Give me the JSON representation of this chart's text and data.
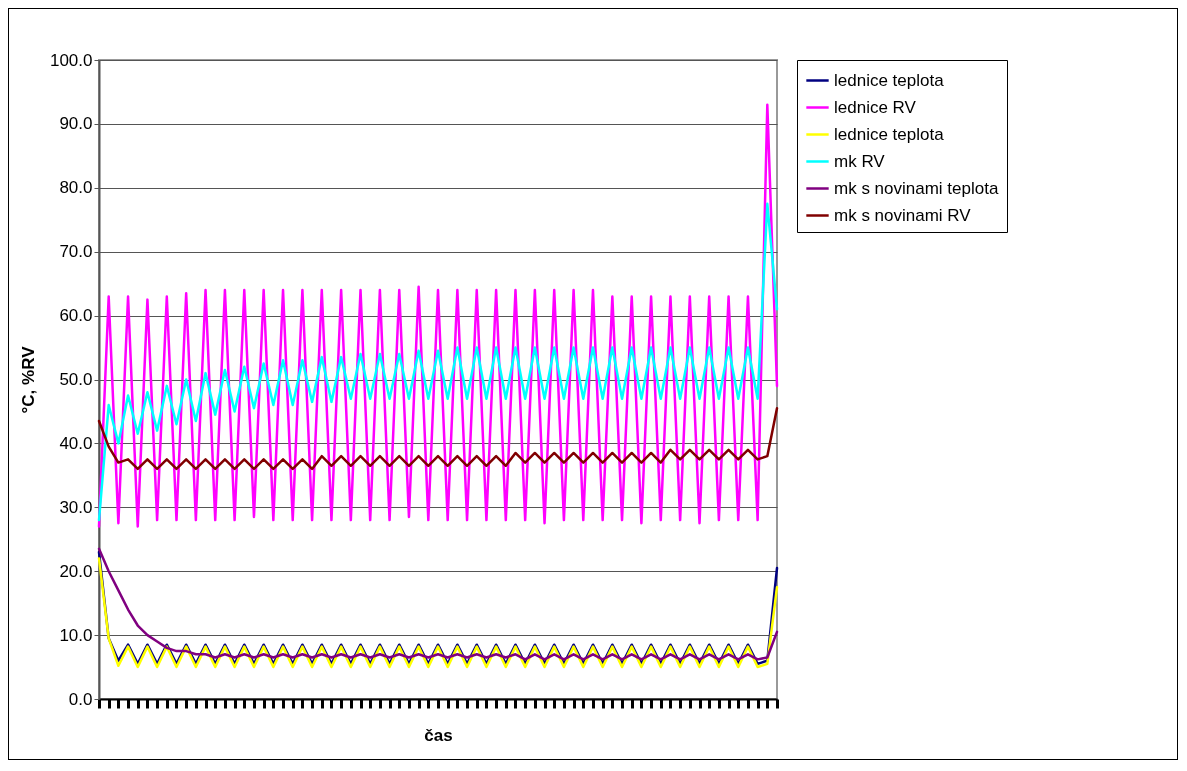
{
  "chart_data": {
    "type": "line",
    "xlabel": "čas",
    "ylabel": "°C, %RV",
    "categories": [
      null,
      null,
      null,
      null,
      null,
      null,
      null,
      null,
      null,
      null,
      null,
      null,
      null,
      null,
      null,
      null,
      null,
      null,
      null,
      null,
      null,
      null,
      null,
      null,
      null,
      null,
      null,
      null,
      null,
      null,
      null,
      null,
      null,
      null,
      null,
      null,
      null,
      null,
      null,
      null,
      null,
      null,
      null,
      null,
      null,
      null,
      null,
      null,
      null,
      null,
      null,
      null,
      null,
      null,
      null,
      null,
      null,
      null,
      null,
      null,
      null,
      null,
      null,
      null,
      null,
      null,
      null,
      null,
      null,
      null,
      null
    ],
    "ylim": [
      0,
      100
    ],
    "yticks": [
      {
        "value": 0,
        "label": "0.0"
      },
      {
        "value": 10,
        "label": "10.0"
      },
      {
        "value": 20,
        "label": "20.0"
      },
      {
        "value": 30,
        "label": "30.0"
      },
      {
        "value": 40,
        "label": "40.0"
      },
      {
        "value": 50,
        "label": "50.0"
      },
      {
        "value": 60,
        "label": "60.0"
      },
      {
        "value": 70,
        "label": "70.0"
      },
      {
        "value": 80,
        "label": "80.0"
      },
      {
        "value": 90,
        "label": "90.0"
      },
      {
        "value": 100,
        "label": "100.0"
      }
    ],
    "grid": "y",
    "legend": "right",
    "tick_labels": "y",
    "marker": "none",
    "line_style": "solid",
    "series": [
      {
        "name": "lednice teplota",
        "color": "#000080",
        "values": [
          23,
          9.5,
          6,
          8.5,
          5.5,
          8.5,
          5.5,
          8.5,
          5.5,
          8.5,
          5.5,
          8.5,
          5.5,
          8.5,
          5.5,
          8.5,
          5.5,
          8.5,
          5.5,
          8.5,
          5.5,
          8.5,
          5.5,
          8.5,
          5.5,
          8.5,
          5.5,
          8.5,
          5.5,
          8.5,
          5.5,
          8.5,
          5.5,
          8.5,
          5.5,
          8.5,
          5.5,
          8.5,
          5.5,
          8.5,
          5.5,
          8.5,
          5.5,
          8.5,
          5.5,
          8.5,
          5.5,
          8.5,
          5.5,
          8.5,
          5.5,
          8.5,
          5.5,
          8.5,
          5.5,
          8.5,
          5.5,
          8.5,
          5.5,
          8.5,
          5.5,
          8.5,
          5.5,
          8.5,
          5.5,
          8.5,
          5.5,
          8.5,
          5.5,
          6,
          20.5
        ]
      },
      {
        "name": "lednice RV",
        "color": "#ff00ff",
        "values": [
          27,
          63,
          27.5,
          63,
          27,
          62.5,
          28,
          63,
          28,
          63.5,
          28,
          64,
          28,
          64,
          28,
          64,
          28.5,
          64,
          28,
          64,
          28,
          64,
          28,
          64,
          28,
          64,
          28,
          64,
          28,
          64,
          28,
          64,
          28.5,
          64.5,
          28,
          64,
          28,
          64,
          28,
          64,
          28,
          64,
          28,
          64,
          28,
          64,
          27.5,
          64,
          28,
          64,
          28,
          64,
          28,
          63,
          28,
          63,
          27.5,
          63,
          28,
          63,
          28,
          63,
          27.5,
          63,
          28,
          63,
          28,
          63,
          28,
          93,
          49
        ]
      },
      {
        "name": "lednice teplota",
        "color": "#ffff00",
        "values": [
          22,
          9.5,
          5.2,
          8.2,
          5,
          8.2,
          5,
          8.2,
          5,
          8.2,
          5,
          8.2,
          5,
          8.2,
          5,
          8.2,
          5,
          8.2,
          5,
          8.2,
          5,
          8.2,
          5,
          8.2,
          5,
          8.2,
          5,
          8.2,
          5,
          8.2,
          5,
          8.2,
          5,
          8.2,
          5,
          8.2,
          5,
          8.2,
          5,
          8.2,
          5,
          8.2,
          5,
          8.2,
          5,
          8.2,
          5,
          8.2,
          5,
          8.2,
          5,
          8.2,
          5,
          8.2,
          5,
          8.2,
          5,
          8.2,
          5,
          8.2,
          5,
          8.2,
          5,
          8.2,
          5,
          8.2,
          5,
          8.2,
          5,
          5.5,
          17.5
        ]
      },
      {
        "name": "mk RV",
        "color": "#00ffff",
        "values": [
          28,
          46,
          40,
          47.5,
          41.5,
          48,
          42,
          49,
          43,
          50,
          43.5,
          51,
          44.5,
          51.5,
          45,
          52,
          45.5,
          52.5,
          46,
          53,
          46,
          53,
          46.5,
          53.5,
          46.5,
          53.5,
          47,
          54,
          47,
          54,
          47,
          54,
          47,
          54.5,
          47,
          54.5,
          47,
          55,
          47,
          55,
          47,
          55,
          47,
          55,
          47,
          55,
          47,
          55,
          47,
          55,
          47,
          55,
          47,
          55,
          47,
          55,
          47,
          55,
          47,
          55,
          47,
          55,
          47,
          55,
          47,
          55,
          47,
          55,
          47,
          77.5,
          61
        ]
      },
      {
        "name": "mk s novinami teplota",
        "color": "#800080",
        "values": [
          23.5,
          20,
          17,
          14,
          11.5,
          10,
          9,
          8,
          7.5,
          7.5,
          7,
          7,
          6.5,
          7,
          6.5,
          7,
          6.5,
          7,
          6.5,
          7,
          6.5,
          7,
          6.5,
          7,
          6.5,
          7,
          6.5,
          7,
          6.5,
          7,
          6.5,
          7,
          6.5,
          7,
          6.5,
          7,
          6.5,
          7,
          6.5,
          7,
          6.5,
          7,
          6.5,
          7,
          6.2,
          7,
          6.2,
          7,
          6.2,
          7,
          6.2,
          7,
          6.2,
          7,
          6.2,
          7,
          6.2,
          7,
          6.2,
          7,
          6.2,
          7,
          6.2,
          7,
          6.2,
          7,
          6.2,
          7,
          6.2,
          6.5,
          10.5
        ]
      },
      {
        "name": "mk s novinami RV",
        "color": "#800000",
        "values": [
          43.5,
          39.5,
          37,
          37.5,
          36,
          37.5,
          36,
          37.5,
          36,
          37.5,
          36,
          37.5,
          36,
          37.5,
          36,
          37.5,
          36,
          37.5,
          36,
          37.5,
          36,
          37.5,
          36,
          38,
          36.5,
          38,
          36.5,
          38,
          36.5,
          38,
          36.5,
          38,
          36.5,
          38,
          36.5,
          38,
          36.5,
          38,
          36.5,
          38,
          36.5,
          38,
          36.5,
          38.5,
          37,
          38.5,
          37,
          38.5,
          37,
          38.5,
          37,
          38.5,
          37,
          38.5,
          37,
          38.5,
          37,
          38.5,
          37,
          39,
          37.5,
          39,
          37.5,
          39,
          37.5,
          39,
          37.5,
          39,
          37.5,
          38,
          45.5
        ]
      }
    ]
  }
}
